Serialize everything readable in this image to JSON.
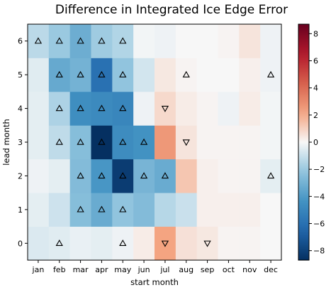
{
  "chart_data": {
    "type": "heatmap",
    "title": "Difference in Integrated Ice Edge Error",
    "xlabel": "start month",
    "ylabel": "lead month",
    "x_categories": [
      "jan",
      "feb",
      "mar",
      "apr",
      "may",
      "jun",
      "jul",
      "aug",
      "sep",
      "oct",
      "nov",
      "dec"
    ],
    "y_categories": [
      "0",
      "1",
      "2",
      "3",
      "4",
      "5",
      "6"
    ],
    "colormap": "RdBu_r",
    "vmin": -8.7,
    "vmax": 8.7,
    "colorbar_ticks": [
      -8,
      -6,
      -4,
      -2,
      0,
      2,
      4,
      6,
      8
    ],
    "colorbar_tick_labels": [
      "−8",
      "−6",
      "−4",
      "−2",
      "0",
      "2",
      "4",
      "6",
      "8"
    ],
    "values": [
      [
        -0.6,
        -0.5,
        -0.3,
        -0.4,
        -0.2,
        0.3,
        2.2,
        0.6,
        0.4,
        0.1,
        0.1,
        0.0
      ],
      [
        -0.4,
        -0.9,
        -2.5,
        -3.3,
        -2.2,
        -2.6,
        -1.4,
        -1.0,
        0.2,
        0.2,
        0.2,
        0.0
      ],
      [
        -0.2,
        -0.4,
        -2.6,
        -4.2,
        -8.2,
        -2.9,
        -3.3,
        1.3,
        0.2,
        0.1,
        0.1,
        -0.4
      ],
      [
        -0.4,
        -1.2,
        -2.5,
        -8.7,
        -4.7,
        -4.4,
        2.6,
        0.5,
        0.1,
        0.1,
        0.1,
        -0.1
      ],
      [
        -0.4,
        -1.6,
        -4.6,
        -4.8,
        -5.0,
        -0.2,
        0.8,
        0.3,
        0.1,
        -0.2,
        0.3,
        -0.1
      ],
      [
        -0.5,
        -3.4,
        -3.0,
        -6.0,
        -2.2,
        -0.8,
        0.4,
        0.1,
        0.0,
        0.0,
        0.2,
        -0.2
      ],
      [
        -1.3,
        -2.0,
        -3.2,
        -1.9,
        -1.5,
        -0.1,
        -0.2,
        0.0,
        0.0,
        0.1,
        0.5,
        -0.2
      ]
    ],
    "markers": [
      {
        "month": "jan",
        "lead": 6,
        "symbol": "up"
      },
      {
        "month": "feb",
        "lead": 6,
        "symbol": "up"
      },
      {
        "month": "mar",
        "lead": 6,
        "symbol": "up"
      },
      {
        "month": "apr",
        "lead": 6,
        "symbol": "up"
      },
      {
        "month": "may",
        "lead": 6,
        "symbol": "up"
      },
      {
        "month": "feb",
        "lead": 5,
        "symbol": "up"
      },
      {
        "month": "mar",
        "lead": 5,
        "symbol": "up"
      },
      {
        "month": "apr",
        "lead": 5,
        "symbol": "up"
      },
      {
        "month": "may",
        "lead": 5,
        "symbol": "up"
      },
      {
        "month": "aug",
        "lead": 5,
        "symbol": "up"
      },
      {
        "month": "dec",
        "lead": 5,
        "symbol": "up"
      },
      {
        "month": "feb",
        "lead": 4,
        "symbol": "up"
      },
      {
        "month": "mar",
        "lead": 4,
        "symbol": "up"
      },
      {
        "month": "apr",
        "lead": 4,
        "symbol": "up"
      },
      {
        "month": "may",
        "lead": 4,
        "symbol": "up"
      },
      {
        "month": "jul",
        "lead": 4,
        "symbol": "down"
      },
      {
        "month": "feb",
        "lead": 3,
        "symbol": "up"
      },
      {
        "month": "mar",
        "lead": 3,
        "symbol": "up"
      },
      {
        "month": "apr",
        "lead": 3,
        "symbol": "up"
      },
      {
        "month": "may",
        "lead": 3,
        "symbol": "up"
      },
      {
        "month": "jun",
        "lead": 3,
        "symbol": "up"
      },
      {
        "month": "aug",
        "lead": 3,
        "symbol": "down"
      },
      {
        "month": "mar",
        "lead": 2,
        "symbol": "up"
      },
      {
        "month": "apr",
        "lead": 2,
        "symbol": "up"
      },
      {
        "month": "may",
        "lead": 2,
        "symbol": "up"
      },
      {
        "month": "jun",
        "lead": 2,
        "symbol": "up"
      },
      {
        "month": "jul",
        "lead": 2,
        "symbol": "up"
      },
      {
        "month": "dec",
        "lead": 2,
        "symbol": "up"
      },
      {
        "month": "mar",
        "lead": 1,
        "symbol": "up"
      },
      {
        "month": "apr",
        "lead": 1,
        "symbol": "up"
      },
      {
        "month": "may",
        "lead": 1,
        "symbol": "up"
      },
      {
        "month": "feb",
        "lead": 0,
        "symbol": "up"
      },
      {
        "month": "may",
        "lead": 0,
        "symbol": "up"
      },
      {
        "month": "jul",
        "lead": 0,
        "symbol": "down"
      },
      {
        "month": "sep",
        "lead": 0,
        "symbol": "down"
      }
    ],
    "grid": false,
    "legend": "none"
  }
}
